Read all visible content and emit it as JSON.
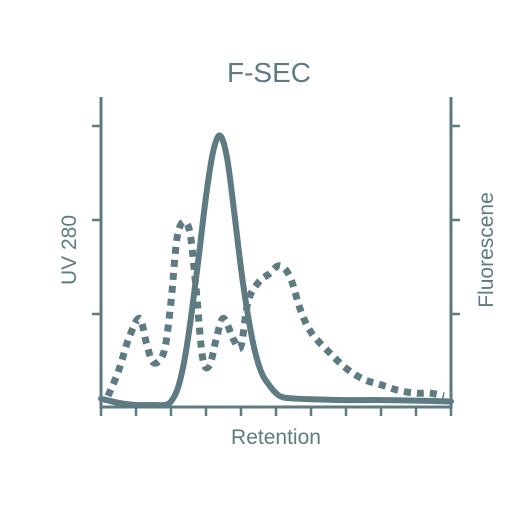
{
  "chart_data": {
    "type": "line",
    "title": "F-SEC",
    "xlabel": "Retention",
    "ylabel_left": "UV 280",
    "ylabel_right": "Fluorescene",
    "xlim": [
      0,
      10
    ],
    "ylim": [
      0,
      1
    ],
    "x_tick_count": 11,
    "y_tick_count": 3,
    "grid": false,
    "legend": "none",
    "colors": {
      "axis": "#5e7a82",
      "series": "#5e7a82",
      "background": "#ffffff"
    },
    "series": [
      {
        "style": "solid",
        "x": [
          0,
          0.5,
          1,
          1.5,
          1.8,
          2.0,
          2.2,
          2.4,
          2.6,
          2.8,
          3.0,
          3.2,
          3.4,
          3.6,
          3.8,
          4.0,
          4.2,
          4.4,
          4.6,
          4.8,
          5.0,
          5.2,
          5.6,
          6.0,
          7.0,
          8.0,
          9.0,
          10.0
        ],
        "values": [
          0.03,
          0.015,
          0.005,
          0.0,
          0.005,
          0.02,
          0.07,
          0.18,
          0.35,
          0.55,
          0.76,
          0.92,
          0.98,
          0.9,
          0.71,
          0.5,
          0.33,
          0.2,
          0.12,
          0.08,
          0.05,
          0.035,
          0.03,
          0.028,
          0.025,
          0.025,
          0.023,
          0.02
        ]
      },
      {
        "style": "dotted",
        "x": [
          0.2,
          0.5,
          0.8,
          1.1,
          1.3,
          1.5,
          1.8,
          2.0,
          2.2,
          2.5,
          2.7,
          2.9,
          3.1,
          3.3,
          3.5,
          3.8,
          4.0,
          4.2,
          4.5,
          4.8,
          5.1,
          5.4,
          5.7,
          6.0,
          6.5,
          7.0,
          7.5,
          8.0,
          8.5,
          9.0,
          9.4,
          9.8
        ],
        "values": [
          0.04,
          0.13,
          0.25,
          0.32,
          0.23,
          0.16,
          0.2,
          0.38,
          0.63,
          0.65,
          0.45,
          0.18,
          0.15,
          0.25,
          0.32,
          0.24,
          0.22,
          0.38,
          0.45,
          0.48,
          0.51,
          0.47,
          0.35,
          0.27,
          0.2,
          0.14,
          0.1,
          0.08,
          0.06,
          0.05,
          0.05,
          0.04
        ]
      }
    ]
  }
}
